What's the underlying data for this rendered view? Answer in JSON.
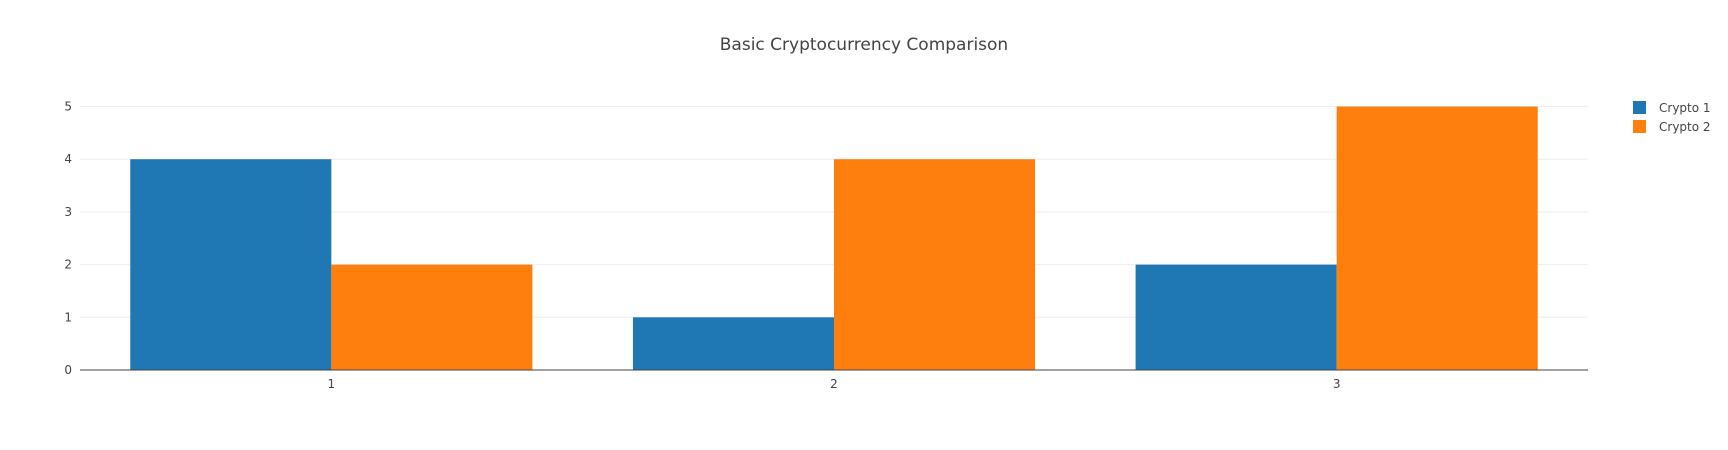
{
  "chart_data": {
    "type": "bar",
    "title": "Basic Cryptocurrency Comparison",
    "xlabel": "",
    "ylabel": "",
    "categories": [
      "1",
      "2",
      "3"
    ],
    "series": [
      {
        "name": "Crypto 1",
        "values": [
          4,
          1,
          2
        ],
        "color": "#1f77b4"
      },
      {
        "name": "Crypto 2",
        "values": [
          2,
          4,
          5
        ],
        "color": "#ff7f0e"
      }
    ],
    "ylim": [
      0,
      5.2
    ],
    "yticks": [
      0,
      1,
      2,
      3,
      4,
      5
    ],
    "grid": true,
    "legend_position": "top-right"
  }
}
